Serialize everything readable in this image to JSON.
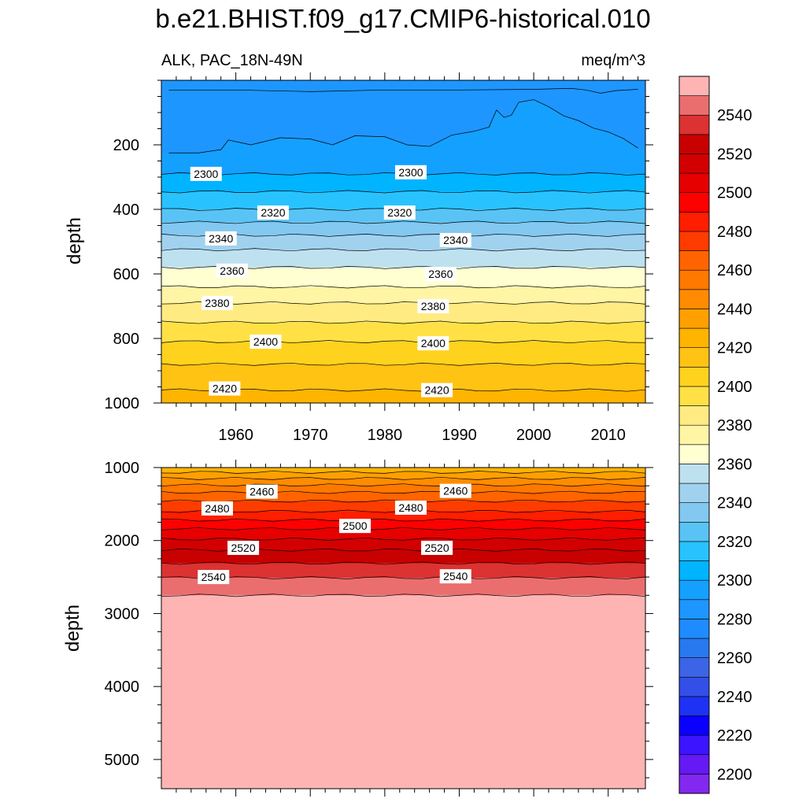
{
  "chart_data": [
    {
      "type": "heatmap",
      "subtype": "filled-contour",
      "title": "b.e21.BHIST.f09_g17.CMIP6-historical.010",
      "left_string": "ALK, PAC_18N-49N",
      "right_string": "meq/m^3",
      "xlabel": "",
      "ylabel": "depth",
      "xlim": [
        1950,
        2015
      ],
      "ylim": [
        1000,
        0
      ],
      "xticks": [
        1960,
        1970,
        1980,
        1990,
        2000,
        2010
      ],
      "xtick_labels": [
        "1960",
        "1970",
        "1980",
        "1990",
        "2000",
        "2010"
      ],
      "yticks": [
        200,
        400,
        600,
        800,
        1000
      ],
      "ytick_labels": [
        "200",
        "400",
        "600",
        "800",
        "1000"
      ],
      "contour_interval": 10,
      "contour_levels_depth": [
        {
          "value": 2290,
          "depth": 215
        },
        {
          "value": 2300,
          "depth": 290
        },
        {
          "value": 2310,
          "depth": 345
        },
        {
          "value": 2320,
          "depth": 400
        },
        {
          "value": 2330,
          "depth": 440
        },
        {
          "value": 2340,
          "depth": 480
        },
        {
          "value": 2350,
          "depth": 525
        },
        {
          "value": 2360,
          "depth": 580
        },
        {
          "value": 2370,
          "depth": 640
        },
        {
          "value": 2380,
          "depth": 690
        },
        {
          "value": 2390,
          "depth": 750
        },
        {
          "value": 2400,
          "depth": 810
        },
        {
          "value": 2410,
          "depth": 880
        },
        {
          "value": 2420,
          "depth": 960
        }
      ],
      "top_contour_2280": [
        {
          "x": 1951,
          "depth": 30
        },
        {
          "x": 1960,
          "depth": 30
        },
        {
          "x": 1970,
          "depth": 35
        },
        {
          "x": 1980,
          "depth": 30
        },
        {
          "x": 1990,
          "depth": 30
        },
        {
          "x": 2000,
          "depth": 28
        },
        {
          "x": 2005,
          "depth": 25
        },
        {
          "x": 2007,
          "depth": 30
        },
        {
          "x": 2009,
          "depth": 40
        },
        {
          "x": 2011,
          "depth": 32
        },
        {
          "x": 2014,
          "depth": 28
        }
      ],
      "contour_2290_top": [
        {
          "x": 1951,
          "depth": 225
        },
        {
          "x": 1955,
          "depth": 225
        },
        {
          "x": 1958,
          "depth": 215
        },
        {
          "x": 1959,
          "depth": 185
        },
        {
          "x": 1962,
          "depth": 200
        },
        {
          "x": 1966,
          "depth": 178
        },
        {
          "x": 1970,
          "depth": 182
        },
        {
          "x": 1973,
          "depth": 200
        },
        {
          "x": 1976,
          "depth": 172
        },
        {
          "x": 1980,
          "depth": 175
        },
        {
          "x": 1983,
          "depth": 200
        },
        {
          "x": 1986,
          "depth": 205
        },
        {
          "x": 1989,
          "depth": 170
        },
        {
          "x": 1992,
          "depth": 158
        },
        {
          "x": 1994,
          "depth": 145
        },
        {
          "x": 1995,
          "depth": 92
        },
        {
          "x": 1996,
          "depth": 115
        },
        {
          "x": 1997,
          "depth": 108
        },
        {
          "x": 1998,
          "depth": 68
        },
        {
          "x": 2000,
          "depth": 60
        },
        {
          "x": 2002,
          "depth": 82
        },
        {
          "x": 2004,
          "depth": 110
        },
        {
          "x": 2006,
          "depth": 125
        },
        {
          "x": 2008,
          "depth": 148
        },
        {
          "x": 2010,
          "depth": 160
        },
        {
          "x": 2012,
          "depth": 180
        },
        {
          "x": 2014,
          "depth": 210
        }
      ],
      "contour_labels": [
        {
          "text": "2300",
          "x": 1956,
          "depth": 290
        },
        {
          "text": "2300",
          "x": 1983.5,
          "depth": 285
        },
        {
          "text": "2320",
          "x": 1965,
          "depth": 410
        },
        {
          "text": "2320",
          "x": 1982,
          "depth": 410
        },
        {
          "text": "2340",
          "x": 1958,
          "depth": 490
        },
        {
          "text": "2340",
          "x": 1989.5,
          "depth": 495
        },
        {
          "text": "2360",
          "x": 1959.5,
          "depth": 590
        },
        {
          "text": "2360",
          "x": 1987.5,
          "depth": 600
        },
        {
          "text": "2380",
          "x": 1957.5,
          "depth": 690
        },
        {
          "text": "2380",
          "x": 1986.5,
          "depth": 700
        },
        {
          "text": "2400",
          "x": 1964,
          "depth": 810
        },
        {
          "text": "2400",
          "x": 1986.5,
          "depth": 815
        },
        {
          "text": "2420",
          "x": 1958.5,
          "depth": 955
        },
        {
          "text": "2420",
          "x": 1987,
          "depth": 960
        }
      ]
    },
    {
      "type": "heatmap",
      "subtype": "filled-contour",
      "xlabel": "",
      "ylabel": "depth",
      "xlim": [
        1950,
        2015
      ],
      "ylim": [
        5400,
        1000
      ],
      "yticks": [
        1000,
        2000,
        3000,
        4000,
        5000
      ],
      "ytick_labels": [
        "1000",
        "2000",
        "3000",
        "4000",
        "5000"
      ],
      "contour_interval": 10,
      "contour_levels_depth": [
        {
          "value": 2430,
          "depth": 1065
        },
        {
          "value": 2440,
          "depth": 1150
        },
        {
          "value": 2450,
          "depth": 1240
        },
        {
          "value": 2460,
          "depth": 1340
        },
        {
          "value": 2470,
          "depth": 1460
        },
        {
          "value": 2480,
          "depth": 1600
        },
        {
          "value": 2490,
          "depth": 1720
        },
        {
          "value": 2500,
          "depth": 1840
        },
        {
          "value": 2510,
          "depth": 1980
        },
        {
          "value": 2520,
          "depth": 2130
        },
        {
          "value": 2530,
          "depth": 2310
        },
        {
          "value": 2540,
          "depth": 2510
        },
        {
          "value": 2550,
          "depth": 2750
        }
      ],
      "contour_labels": [
        {
          "text": "2460",
          "x": 1963.5,
          "depth": 1330
        },
        {
          "text": "2460",
          "x": 1989.5,
          "depth": 1320
        },
        {
          "text": "2480",
          "x": 1957.5,
          "depth": 1560
        },
        {
          "text": "2480",
          "x": 1983.5,
          "depth": 1550
        },
        {
          "text": "2500",
          "x": 1976,
          "depth": 1800
        },
        {
          "text": "2520",
          "x": 1961,
          "depth": 2100
        },
        {
          "text": "2520",
          "x": 1987,
          "depth": 2100
        },
        {
          "text": "2540",
          "x": 1957,
          "depth": 2500
        },
        {
          "text": "2540",
          "x": 1989.5,
          "depth": 2490
        }
      ]
    }
  ],
  "colorbar": {
    "labels": [
      "2200",
      "2220",
      "2240",
      "2260",
      "2280",
      "2300",
      "2320",
      "2340",
      "2360",
      "2380",
      "2400",
      "2420",
      "2440",
      "2460",
      "2480",
      "2500",
      "2520",
      "2540"
    ],
    "label_values": [
      2200,
      2220,
      2240,
      2260,
      2280,
      2300,
      2320,
      2340,
      2360,
      2380,
      2400,
      2420,
      2440,
      2460,
      2480,
      2500,
      2520,
      2540
    ],
    "levels_min": 2190,
    "levels_max": 2560,
    "step": 10,
    "colors": [
      "#8228f0",
      "#6419f5",
      "#3c14ff",
      "#0a00ff",
      "#1e32f5",
      "#3250e8",
      "#3c64e6",
      "#2878f0",
      "#1e8cff",
      "#1e96ff",
      "#14a0ff",
      "#00b4ff",
      "#28c3ff",
      "#5ac3f5",
      "#82c8f0",
      "#a0d2f0",
      "#bee1f0",
      "#ffffd2",
      "#fff5a5",
      "#ffeb82",
      "#ffe146",
      "#ffd21e",
      "#ffc314",
      "#ffb400",
      "#ffa000",
      "#ff8c00",
      "#ff7800",
      "#ff6400",
      "#ff3c00",
      "#ff1e00",
      "#ff0000",
      "#e60000",
      "#d20000",
      "#c80000",
      "#dc3232",
      "#eb6e6e",
      "#ffb4b4"
    ]
  }
}
